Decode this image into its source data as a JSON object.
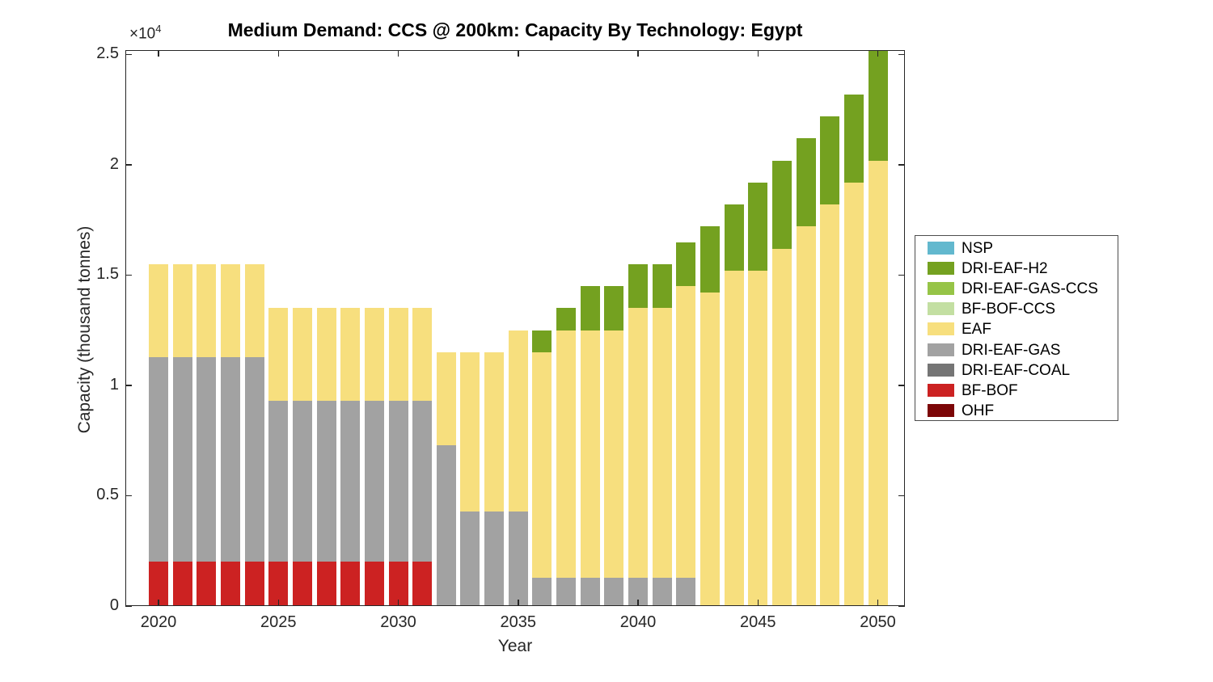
{
  "figure": {
    "title": "Medium Demand: CCS @ 200km: Capacity By Technology: Egypt",
    "xlabel": "Year",
    "ylabel": "Capacity (thousand tonnes)",
    "y_multiplier_base": "×10",
    "y_multiplier_exp": "4",
    "background": "#ffffff",
    "axis_color": "#262626"
  },
  "chart_data": {
    "type": "bar",
    "stacked": true,
    "title": "Medium Demand: CCS @ 200km: Capacity By Technology: Egypt",
    "xlabel": "Year",
    "ylabel": "Capacity (thousand tonnes)",
    "grid": false,
    "legend_position": "right-outside",
    "ylim": [
      0,
      25200
    ],
    "y_ticks": [
      {
        "value": 0,
        "label": "0"
      },
      {
        "value": 5000,
        "label": "0.5"
      },
      {
        "value": 10000,
        "label": "1"
      },
      {
        "value": 15000,
        "label": "1.5"
      },
      {
        "value": 20000,
        "label": "2"
      },
      {
        "value": 25000,
        "label": "2.5"
      }
    ],
    "y_tick_note": "labels are value ×10^4 thousand tonnes",
    "x": [
      2020,
      2021,
      2022,
      2023,
      2024,
      2025,
      2026,
      2027,
      2028,
      2029,
      2030,
      2031,
      2032,
      2033,
      2034,
      2035,
      2036,
      2037,
      2038,
      2039,
      2040,
      2041,
      2042,
      2043,
      2044,
      2045,
      2046,
      2047,
      2048,
      2049,
      2050
    ],
    "x_tick_years": [
      2020,
      2025,
      2030,
      2035,
      2040,
      2045,
      2050
    ],
    "series_bottom_to_top": [
      {
        "name": "OHF",
        "color": "#7C0607",
        "values": [
          0,
          0,
          0,
          0,
          0,
          0,
          0,
          0,
          0,
          0,
          0,
          0,
          0,
          0,
          0,
          0,
          0,
          0,
          0,
          0,
          0,
          0,
          0,
          0,
          0,
          0,
          0,
          0,
          0,
          0,
          0
        ]
      },
      {
        "name": "BF-BOF",
        "color": "#CC2222",
        "values": [
          2000,
          2000,
          2000,
          2000,
          2000,
          2000,
          2000,
          2000,
          2000,
          2000,
          2000,
          2000,
          0,
          0,
          0,
          0,
          0,
          0,
          0,
          0,
          0,
          0,
          0,
          0,
          0,
          0,
          0,
          0,
          0,
          0,
          0
        ]
      },
      {
        "name": "DRI-EAF-COAL",
        "color": "#757575",
        "values": [
          0,
          0,
          0,
          0,
          0,
          0,
          0,
          0,
          0,
          0,
          0,
          0,
          0,
          0,
          0,
          0,
          0,
          0,
          0,
          0,
          0,
          0,
          0,
          0,
          0,
          0,
          0,
          0,
          0,
          0,
          0
        ]
      },
      {
        "name": "DRI-EAF-GAS",
        "color": "#A2A2A2",
        "values": [
          9300,
          9300,
          9300,
          9300,
          9300,
          7300,
          7300,
          7300,
          7300,
          7300,
          7300,
          7300,
          7300,
          4300,
          4300,
          4300,
          1300,
          1300,
          1300,
          1300,
          1300,
          1300,
          1300,
          0,
          0,
          0,
          0,
          0,
          0,
          0,
          0
        ]
      },
      {
        "name": "EAF",
        "color": "#F7DF7E",
        "values": [
          4200,
          4200,
          4200,
          4200,
          4200,
          4200,
          4200,
          4200,
          4200,
          4200,
          4200,
          4200,
          4200,
          7200,
          7200,
          8200,
          10200,
          11200,
          11200,
          11200,
          12200,
          12200,
          13200,
          14200,
          15200,
          15200,
          16200,
          17200,
          18200,
          19200,
          20200
        ]
      },
      {
        "name": "BF-BOF-CCS",
        "color": "#C3DFA2",
        "values": [
          0,
          0,
          0,
          0,
          0,
          0,
          0,
          0,
          0,
          0,
          0,
          0,
          0,
          0,
          0,
          0,
          0,
          0,
          0,
          0,
          0,
          0,
          0,
          0,
          0,
          0,
          0,
          0,
          0,
          0,
          0
        ]
      },
      {
        "name": "DRI-EAF-GAS-CCS",
        "color": "#96C447",
        "values": [
          0,
          0,
          0,
          0,
          0,
          0,
          0,
          0,
          0,
          0,
          0,
          0,
          0,
          0,
          0,
          0,
          0,
          0,
          0,
          0,
          0,
          0,
          0,
          0,
          0,
          0,
          0,
          0,
          0,
          0,
          0
        ]
      },
      {
        "name": "DRI-EAF-H2",
        "color": "#74A120",
        "values": [
          0,
          0,
          0,
          0,
          0,
          0,
          0,
          0,
          0,
          0,
          0,
          0,
          0,
          0,
          0,
          0,
          1000,
          1000,
          2000,
          2000,
          2000,
          2000,
          2000,
          3000,
          3000,
          4000,
          4000,
          4000,
          4000,
          4000,
          5000
        ]
      },
      {
        "name": "NSP",
        "color": "#62B8CE",
        "values": [
          0,
          0,
          0,
          0,
          0,
          0,
          0,
          0,
          0,
          0,
          0,
          0,
          0,
          0,
          0,
          0,
          0,
          0,
          0,
          0,
          0,
          0,
          0,
          0,
          0,
          0,
          0,
          0,
          0,
          0,
          0
        ]
      }
    ]
  },
  "legend": {
    "items": [
      {
        "label": "NSP",
        "color": "#62B8CE"
      },
      {
        "label": "DRI-EAF-H2",
        "color": "#74A120"
      },
      {
        "label": "DRI-EAF-GAS-CCS",
        "color": "#96C447"
      },
      {
        "label": "BF-BOF-CCS",
        "color": "#C3DFA2"
      },
      {
        "label": "EAF",
        "color": "#F7DF7E"
      },
      {
        "label": "DRI-EAF-GAS",
        "color": "#A2A2A2"
      },
      {
        "label": "DRI-EAF-COAL",
        "color": "#757575"
      },
      {
        "label": "BF-BOF",
        "color": "#CC2222"
      },
      {
        "label": "OHF",
        "color": "#7C0607"
      }
    ]
  }
}
